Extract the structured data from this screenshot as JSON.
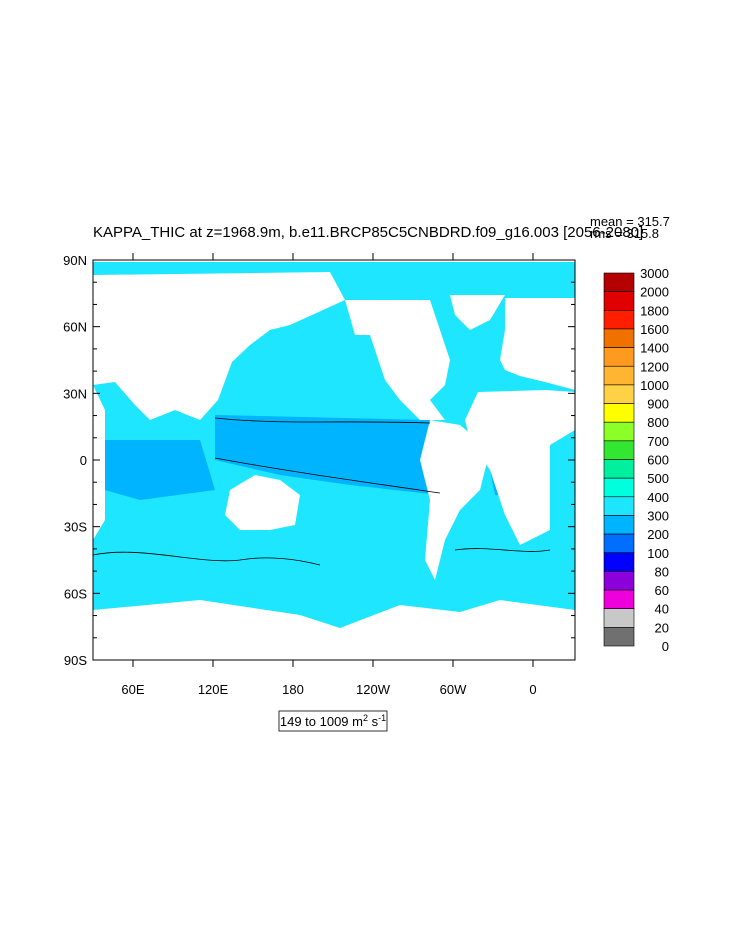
{
  "title": "KAPPA_THIC at z=1968.9m, b.e11.BRCP85C5CNBDRD.f09_g16.003 [2056-2080]",
  "stats": {
    "mean": "mean = 315.7",
    "rms": "rms = 315.8"
  },
  "map": {
    "lat_labels": [
      "90N",
      "60N",
      "30N",
      "0",
      "30S",
      "60S",
      "90S"
    ],
    "lon_labels": [
      "60E",
      "120E",
      "180",
      "120W",
      "60W",
      "0"
    ]
  },
  "colorbar": {
    "labels": [
      "3000",
      "2000",
      "1800",
      "1600",
      "1400",
      "1200",
      "1000",
      "900",
      "800",
      "700",
      "600",
      "500",
      "400",
      "300",
      "200",
      "100",
      "80",
      "60",
      "40",
      "20",
      "0"
    ],
    "colors": [
      "#b40000",
      "#e00000",
      "#ff1e00",
      "#f07000",
      "#ff9a20",
      "#ffb432",
      "#ffd246",
      "#ffff00",
      "#8cff28",
      "#32e632",
      "#00f0a0",
      "#00ffdc",
      "#1ee6ff",
      "#00b4ff",
      "#006eff",
      "#0000ff",
      "#8c00dc",
      "#ee00dc",
      "#c8c8c8",
      "#707070"
    ]
  },
  "range_label": {
    "main": "149 to 1009 m",
    "sup1": "2",
    "mid": " s",
    "sup2": "-1"
  }
}
